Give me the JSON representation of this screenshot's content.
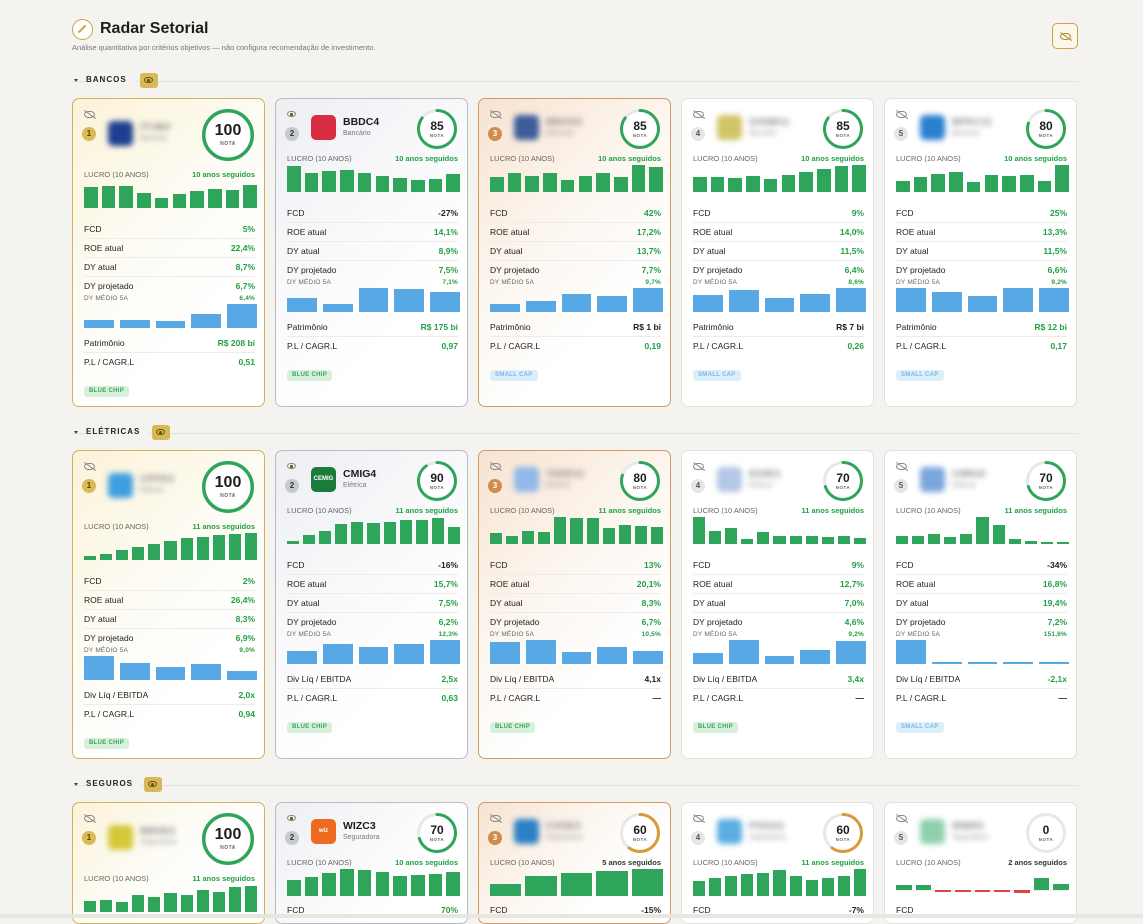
{
  "header": {
    "title": "Radar Setorial",
    "subtitle": "Análise quantitativa por critérios objetivos — não configura recomendação de investimento."
  },
  "icons": {
    "logo": "radar-icon",
    "global_toggle": "eye-off-icon",
    "section_toggle": "eye-icon",
    "card_visibility": "eye-off-icon"
  },
  "colors": {
    "gold": "#d2b35a",
    "silver": "#b8bcc4",
    "bronze": "#d49a62",
    "profit_bar": "#2ea55a",
    "dy_bar": "#58a8e6",
    "positive": "#22a045",
    "negative": "#d94545"
  },
  "labels": {
    "score": "NOTA",
    "lucro": "LUCRO (10 ANOS)",
    "dy_medio": "DY MÉDIO 5A"
  },
  "sections": [
    {
      "name": "BANCOS",
      "cards": [
        {
          "rank": "1",
          "ticker": "ITUB4",
          "sector": "Bancário",
          "hidden": true,
          "score": 100,
          "streak": "10 anos seguidos",
          "profits": [
            0.78,
            0.8,
            0.82,
            0.55,
            0.38,
            0.52,
            0.62,
            0.72,
            0.67,
            0.85
          ],
          "fcd": "5%",
          "fcd_pos": true,
          "roe": "22,4%",
          "dy": "8,7%",
          "dyp": "6,7%",
          "dy_medio": "6,4%",
          "dy_bars": [
            0.32,
            0.32,
            0.3,
            0.6,
            1
          ],
          "bottom": [
            {
              "k": "Patrimônio",
              "v": "R$ 208 bi",
              "pos": true
            },
            {
              "k": "P.L / CAGR.L",
              "v": "0,51",
              "pos": true
            }
          ],
          "badge": "BLUE CHIP"
        },
        {
          "rank": "2",
          "ticker": "BBDC4",
          "sector": "Bancário",
          "hidden": false,
          "score": 85,
          "streak": "10 anos seguidos",
          "profits": [
            0.95,
            0.72,
            0.78,
            0.8,
            0.72,
            0.6,
            0.52,
            0.44,
            0.5,
            0.68
          ],
          "fcd": "-27%",
          "fcd_pos": false,
          "roe": "14,1%",
          "dy": "8,9%",
          "dyp": "7,5%",
          "dy_medio": "7,1%",
          "dy_bars": [
            0.58,
            0.33,
            1,
            0.95,
            0.85
          ],
          "bottom": [
            {
              "k": "Patrimônio",
              "v": "R$ 175 bi",
              "pos": true
            },
            {
              "k": "P.L / CAGR.L",
              "v": "0,97",
              "pos": true
            }
          ],
          "badge": "BLUE CHIP"
        },
        {
          "rank": "3",
          "ticker": "BBAS3",
          "sector": "Bancário",
          "hidden": true,
          "score": 85,
          "streak": "10 anos seguidos",
          "profits": [
            0.55,
            0.72,
            0.58,
            0.72,
            0.45,
            0.6,
            0.7,
            0.55,
            1,
            0.92
          ],
          "fcd": "42%",
          "fcd_pos": true,
          "roe": "17,2%",
          "dy": "13,7%",
          "dyp": "7,7%",
          "dy_medio": "9,7%",
          "dy_bars": [
            0.35,
            0.45,
            0.75,
            0.68,
            1
          ],
          "bottom": [
            {
              "k": "Patrimônio",
              "v": "R$ 1 bi",
              "pos": false
            },
            {
              "k": "P.L / CAGR.L",
              "v": "0,19",
              "pos": true
            }
          ],
          "badge": "SMALL CAP"
        },
        {
          "rank": "4",
          "ticker": "SANB11",
          "sector": "Bancário",
          "hidden": true,
          "score": 85,
          "streak": "10 anos seguidos",
          "profits": [
            0.55,
            0.55,
            0.52,
            0.58,
            0.5,
            0.62,
            0.75,
            0.85,
            0.95,
            1
          ],
          "fcd": "9%",
          "fcd_pos": true,
          "roe": "14,0%",
          "dy": "11,5%",
          "dyp": "6,4%",
          "dy_medio": "8,6%",
          "dy_bars": [
            0.72,
            0.9,
            0.6,
            0.75,
            1
          ],
          "bottom": [
            {
              "k": "Patrimônio",
              "v": "R$ 7 bi",
              "pos": false
            },
            {
              "k": "P.L / CAGR.L",
              "v": "0,26",
              "pos": true
            }
          ],
          "badge": "SMALL CAP"
        },
        {
          "rank": "5",
          "ticker": "BPAC11",
          "sector": "Bancário",
          "hidden": true,
          "score": 80,
          "streak": "10 anos seguidos",
          "profits": [
            0.4,
            0.55,
            0.65,
            0.75,
            0.38,
            0.62,
            0.6,
            0.62,
            0.42,
            1
          ],
          "fcd": "25%",
          "fcd_pos": true,
          "roe": "13,3%",
          "dy": "11,5%",
          "dyp": "6,6%",
          "dy_medio": "9,2%",
          "dy_bars": [
            1,
            0.85,
            0.68,
            1,
            1
          ],
          "bottom": [
            {
              "k": "Patrimônio",
              "v": "R$ 12 bi",
              "pos": true
            },
            {
              "k": "P.L / CAGR.L",
              "v": "0,17",
              "pos": true
            }
          ],
          "badge": "SMALL CAP"
        }
      ]
    },
    {
      "name": "ELÉTRICAS",
      "cards": [
        {
          "rank": "1",
          "ticker": "CPFE3",
          "sector": "Elétrica",
          "hidden": true,
          "score": 100,
          "streak": "11 anos seguidos",
          "profits": [
            0.15,
            0.22,
            0.38,
            0.48,
            0.6,
            0.72,
            0.8,
            0.85,
            0.92,
            0.95,
            1
          ],
          "fcd": "2%",
          "fcd_pos": true,
          "roe": "26,4%",
          "dy": "8,3%",
          "dyp": "6,9%",
          "dy_medio": "9,0%",
          "dy_bars": [
            1,
            0.72,
            0.55,
            0.65,
            0.38
          ],
          "bottom": [
            {
              "k": "Div Líq / EBITDA",
              "v": "2,0x",
              "pos": true
            },
            {
              "k": "P.L / CAGR.L",
              "v": "0,94",
              "pos": true
            }
          ],
          "badge": "BLUE CHIP"
        },
        {
          "rank": "2",
          "ticker": "CMIG4",
          "sector": "Elétrica",
          "hidden": false,
          "score": 90,
          "streak": "11 anos seguidos",
          "profits": [
            0.12,
            0.35,
            0.5,
            0.75,
            0.8,
            0.78,
            0.82,
            0.88,
            0.9,
            0.95,
            0.62
          ],
          "fcd": "-16%",
          "fcd_pos": false,
          "roe": "15,7%",
          "dy": "7,5%",
          "dyp": "6,2%",
          "dy_medio": "12,3%",
          "dy_bars": [
            0.55,
            0.85,
            0.72,
            0.82,
            1
          ],
          "bottom": [
            {
              "k": "Div Líq / EBITDA",
              "v": "2,5x",
              "pos": true
            },
            {
              "k": "P.L / CAGR.L",
              "v": "0,63",
              "pos": true
            }
          ],
          "badge": "BLUE CHIP"
        },
        {
          "rank": "3",
          "ticker": "TAEE11",
          "sector": "Elétrica",
          "hidden": true,
          "score": 80,
          "streak": "11 anos seguidos",
          "profits": [
            0.4,
            0.3,
            0.5,
            0.45,
            1,
            0.98,
            0.95,
            0.6,
            0.72,
            0.68,
            0.62
          ],
          "fcd": "13%",
          "fcd_pos": true,
          "roe": "20,1%",
          "dy": "8,3%",
          "dyp": "6,7%",
          "dy_medio": "10,5%",
          "dy_bars": [
            0.92,
            1,
            0.5,
            0.72,
            0.55
          ],
          "bottom": [
            {
              "k": "Div Líq / EBITDA",
              "v": "4,1x",
              "pos": false
            },
            {
              "k": "P.L / CAGR.L",
              "v": "—",
              "pos": false
            }
          ],
          "badge": "BLUE CHIP"
        },
        {
          "rank": "4",
          "ticker": "EGIE3",
          "sector": "Elétrica",
          "hidden": true,
          "score": 70,
          "streak": "11 anos seguidos",
          "profits": [
            1,
            0.5,
            0.6,
            0.2,
            0.45,
            0.3,
            0.3,
            0.28,
            0.26,
            0.28,
            0.22
          ],
          "fcd": "9%",
          "fcd_pos": true,
          "roe": "12,7%",
          "dy": "7,0%",
          "dyp": "4,6%",
          "dy_medio": "9,2%",
          "dy_bars": [
            0.45,
            1,
            0.35,
            0.6,
            0.95
          ],
          "bottom": [
            {
              "k": "Div Líq / EBITDA",
              "v": "3,4x",
              "pos": true
            },
            {
              "k": "P.L / CAGR.L",
              "v": "—",
              "pos": false
            }
          ],
          "badge": "BLUE CHIP"
        },
        {
          "rank": "5",
          "ticker": "CMIG3",
          "sector": "Elétrica",
          "hidden": true,
          "score": 70,
          "streak": "11 anos seguidos",
          "profits": [
            0.3,
            0.3,
            0.38,
            0.25,
            0.38,
            1,
            0.72,
            0.2,
            0.12,
            0.08,
            0.08
          ],
          "fcd": "-34%",
          "fcd_pos": false,
          "roe": "16,8%",
          "dy": "19,4%",
          "dyp": "7,2%",
          "dy_medio": "151,6%",
          "dy_bars": [
            1,
            0.08,
            0.08,
            0.08,
            0.08
          ],
          "bottom": [
            {
              "k": "Div Líq / EBITDA",
              "v": "-2,1x",
              "pos": true
            },
            {
              "k": "P.L / CAGR.L",
              "v": "—",
              "pos": false
            }
          ],
          "badge": "SMALL CAP"
        }
      ]
    },
    {
      "name": "SEGUROS",
      "cards": [
        {
          "rank": "1",
          "ticker": "BBSE3",
          "sector": "Seguradora",
          "hidden": true,
          "score": 100,
          "streak": "11 anos seguidos",
          "profits": [
            0.4,
            0.45,
            0.38,
            0.62,
            0.55,
            0.72,
            0.62,
            0.82,
            0.75,
            0.92,
            0.95
          ],
          "fcd": "70%",
          "fcd_pos": true
        },
        {
          "rank": "2",
          "ticker": "WIZC3",
          "sector": "Seguradora",
          "hidden": false,
          "score": 70,
          "streak": "10 anos seguidos",
          "profits": [
            0.6,
            0.72,
            0.85,
            1,
            0.95,
            0.9,
            0.75,
            0.78,
            0.82,
            0.9
          ],
          "fcd": "70%",
          "fcd_pos": true
        },
        {
          "rank": "3",
          "ticker": "CXSE3",
          "sector": "Seguradora",
          "hidden": true,
          "score": 60,
          "streak": "5 anos seguidos",
          "streak_dark": true,
          "profits": [
            0.45,
            0.75,
            0.85,
            0.92,
            1
          ],
          "fcd": "-15%",
          "fcd_pos": false
        },
        {
          "rank": "4",
          "ticker": "PSSA3",
          "sector": "Seguradora",
          "hidden": true,
          "score": 60,
          "streak": "11 anos seguidos",
          "profits": [
            0.55,
            0.65,
            0.75,
            0.8,
            0.85,
            0.95,
            0.75,
            0.58,
            0.65,
            0.75,
            1
          ],
          "fcd": "-7%",
          "fcd_pos": false
        },
        {
          "rank": "5",
          "ticker": "IRBR3",
          "sector": "Seguradora",
          "hidden": true,
          "score": 0,
          "streak": "2 anos seguidos",
          "streak_dark": true,
          "profits": [
            0.25,
            0.25,
            -0.08,
            -0.06,
            -0.06,
            -0.06,
            -0.12,
            0.55,
            0.3
          ],
          "fcd": "",
          "fcd_pos": false
        }
      ]
    }
  ]
}
